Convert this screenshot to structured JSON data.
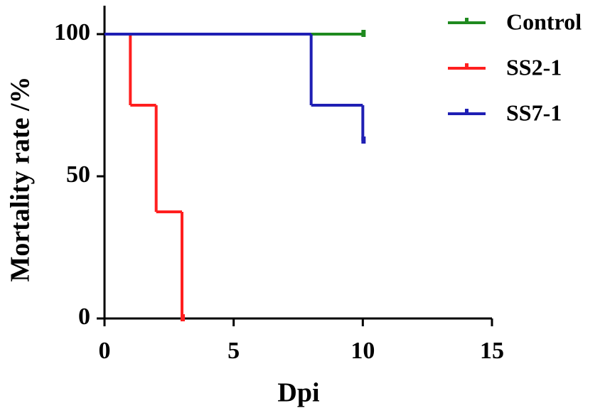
{
  "chart_data": {
    "type": "line",
    "step": "post",
    "x_label": "Dpi",
    "y_label": "Mortality rate /%",
    "xlim": [
      0,
      15
    ],
    "xticks": [
      0,
      5,
      10,
      15
    ],
    "ylim": [
      0,
      110
    ],
    "yticks": [
      0,
      50,
      100
    ],
    "legend": "top-right",
    "series": [
      {
        "name": "Control",
        "color": "#1f8a1f",
        "x": [
          0,
          10
        ],
        "values": [
          100,
          100
        ]
      },
      {
        "name": "SS2-1",
        "color": "#ff1f1f",
        "x": [
          0,
          1,
          2,
          3
        ],
        "values": [
          100,
          75,
          37.5,
          0
        ]
      },
      {
        "name": "SS7-1",
        "color": "#1f1fb4",
        "x": [
          0,
          8,
          10
        ],
        "values": [
          100,
          75,
          62.5
        ]
      }
    ]
  }
}
